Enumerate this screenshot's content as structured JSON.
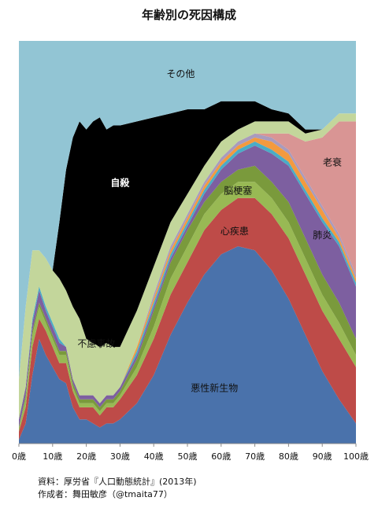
{
  "chart_data": {
    "type": "area",
    "title": "年齢別の死因構成",
    "xlabel": "",
    "ylabel": "",
    "xlim": [
      0,
      100
    ],
    "ylim": [
      0,
      1
    ],
    "grid": false,
    "legend": "none (labels placed on areas)",
    "x": [
      0,
      2,
      4,
      6,
      8,
      10,
      12,
      14,
      16,
      18,
      20,
      22,
      24,
      26,
      28,
      30,
      35,
      40,
      45,
      50,
      55,
      60,
      65,
      70,
      75,
      80,
      85,
      90,
      95,
      100
    ],
    "x_tick_labels": [
      "0歳",
      "10歳",
      "20歳",
      "30歳",
      "40歳",
      "50歳",
      "60歳",
      "70歳",
      "80歳",
      "90歳",
      "100歳"
    ],
    "series": [
      {
        "name": "悪性新生物",
        "color": "#4a72ab",
        "values": [
          0.01,
          0.05,
          0.17,
          0.26,
          0.22,
          0.19,
          0.16,
          0.15,
          0.09,
          0.06,
          0.06,
          0.05,
          0.04,
          0.05,
          0.05,
          0.06,
          0.1,
          0.17,
          0.27,
          0.35,
          0.42,
          0.47,
          0.49,
          0.48,
          0.43,
          0.36,
          0.27,
          0.18,
          0.11,
          0.05
        ]
      },
      {
        "name": "心疾患",
        "color": "#be4b48",
        "values": [
          0.02,
          0.04,
          0.07,
          0.05,
          0.06,
          0.05,
          0.04,
          0.05,
          0.04,
          0.03,
          0.03,
          0.04,
          0.03,
          0.04,
          0.04,
          0.05,
          0.07,
          0.09,
          0.1,
          0.1,
          0.11,
          0.11,
          0.12,
          0.13,
          0.14,
          0.15,
          0.15,
          0.15,
          0.15,
          0.14
        ]
      },
      {
        "name": "(green)",
        "color": "#98b954",
        "values": [
          0.01,
          0.02,
          0.03,
          0.03,
          0.02,
          0.02,
          0.02,
          0.02,
          0.01,
          0.01,
          0.01,
          0.01,
          0.01,
          0.01,
          0.01,
          0.01,
          0.02,
          0.03,
          0.04,
          0.04,
          0.04,
          0.04,
          0.04,
          0.04,
          0.04,
          0.04,
          0.04,
          0.04,
          0.04,
          0.03
        ]
      },
      {
        "name": "脳梗塞",
        "color": "#7a9a3c",
        "values": [
          0.0,
          0.01,
          0.01,
          0.01,
          0.01,
          0.01,
          0.01,
          0.01,
          0.01,
          0.01,
          0.01,
          0.01,
          0.01,
          0.01,
          0.01,
          0.01,
          0.02,
          0.04,
          0.04,
          0.04,
          0.03,
          0.03,
          0.03,
          0.04,
          0.04,
          0.05,
          0.05,
          0.05,
          0.05,
          0.04
        ]
      },
      {
        "name": "肺炎",
        "color": "#7d5fa0",
        "values": [
          0.02,
          0.02,
          0.02,
          0.03,
          0.02,
          0.02,
          0.02,
          0.01,
          0.01,
          0.01,
          0.01,
          0.01,
          0.01,
          0.01,
          0.01,
          0.01,
          0.01,
          0.01,
          0.01,
          0.01,
          0.02,
          0.03,
          0.04,
          0.05,
          0.07,
          0.09,
          0.11,
          0.13,
          0.14,
          0.13
        ]
      },
      {
        "name": "(teal)",
        "color": "#4aacc6",
        "values": [
          0.0,
          0.0,
          0.01,
          0.01,
          0.01,
          0.01,
          0.01,
          0.0,
          0.0,
          0.0,
          0.0,
          0.0,
          0.0,
          0.0,
          0.0,
          0.0,
          0.01,
          0.01,
          0.01,
          0.01,
          0.01,
          0.01,
          0.01,
          0.01,
          0.01,
          0.01,
          0.01,
          0.01,
          0.01,
          0.01
        ]
      },
      {
        "name": "(orange)",
        "color": "#f39a3e",
        "values": [
          0.0,
          0.0,
          0.0,
          0.0,
          0.0,
          0.0,
          0.0,
          0.0,
          0.0,
          0.0,
          0.0,
          0.0,
          0.0,
          0.0,
          0.0,
          0.0,
          0.01,
          0.01,
          0.01,
          0.01,
          0.01,
          0.01,
          0.01,
          0.01,
          0.02,
          0.02,
          0.02,
          0.02,
          0.01,
          0.01
        ]
      },
      {
        "name": "(lilac)",
        "color": "#a99bbd",
        "values": [
          0.0,
          0.0,
          0.0,
          0.0,
          0.0,
          0.0,
          0.0,
          0.0,
          0.0,
          0.0,
          0.0,
          0.0,
          0.0,
          0.0,
          0.0,
          0.0,
          0.0,
          0.01,
          0.01,
          0.01,
          0.01,
          0.01,
          0.01,
          0.01,
          0.01,
          0.01,
          0.01,
          0.01,
          0.01,
          0.01
        ]
      },
      {
        "name": "老衰",
        "color": "#d99594",
        "values": [
          0.0,
          0.0,
          0.0,
          0.0,
          0.0,
          0.0,
          0.0,
          0.0,
          0.0,
          0.0,
          0.0,
          0.0,
          0.0,
          0.0,
          0.0,
          0.0,
          0.0,
          0.0,
          0.0,
          0.0,
          0.0,
          0.0,
          0.0,
          0.0,
          0.01,
          0.04,
          0.09,
          0.17,
          0.28,
          0.38
        ]
      },
      {
        "name": "不慮事故",
        "color": "#c3d69b",
        "values": [
          0.1,
          0.2,
          0.17,
          0.09,
          0.12,
          0.13,
          0.15,
          0.14,
          0.18,
          0.19,
          0.14,
          0.13,
          0.14,
          0.13,
          0.12,
          0.1,
          0.09,
          0.07,
          0.06,
          0.05,
          0.04,
          0.04,
          0.03,
          0.03,
          0.03,
          0.03,
          0.02,
          0.02,
          0.02,
          0.02
        ]
      },
      {
        "name": "自殺",
        "color": "#000000",
        "values": [
          0.0,
          0.0,
          0.0,
          0.0,
          0.0,
          0.0,
          0.14,
          0.3,
          0.42,
          0.49,
          0.52,
          0.55,
          0.57,
          0.53,
          0.55,
          0.55,
          0.47,
          0.37,
          0.27,
          0.21,
          0.14,
          0.1,
          0.07,
          0.05,
          0.03,
          0.02,
          0.01,
          0.0,
          0.0,
          0.0
        ]
      },
      {
        "name": "その他",
        "color": "#92c5d4",
        "values": [
          0.84,
          0.66,
          0.52,
          0.52,
          0.54,
          0.57,
          0.45,
          0.32,
          0.23,
          0.2,
          0.22,
          0.2,
          0.19,
          0.22,
          0.21,
          0.21,
          0.21,
          0.19,
          0.18,
          0.18,
          0.17,
          0.15,
          0.15,
          0.16,
          0.17,
          0.17,
          0.22,
          0.18,
          0.13,
          0.16
        ]
      }
    ],
    "annotations": [
      {
        "text": "その他",
        "x": 48,
        "y": 0.91
      },
      {
        "text": "自殺",
        "x": 30,
        "y": 0.64
      },
      {
        "text": "不慮事故",
        "x": 23,
        "y": 0.24
      },
      {
        "text": "悪性新生物",
        "x": 58,
        "y": 0.13
      },
      {
        "text": "心疾患",
        "x": 64,
        "y": 0.52
      },
      {
        "text": "脳梗塞",
        "x": 65,
        "y": 0.62
      },
      {
        "text": "肺炎",
        "x": 90,
        "y": 0.51
      },
      {
        "text": "老衰",
        "x": 93,
        "y": 0.69
      }
    ]
  },
  "notes": {
    "source": "資料：厚労省『人口動態統計』(2013年)",
    "author": "作成者：舞田敏彦（@tmaita77）"
  }
}
